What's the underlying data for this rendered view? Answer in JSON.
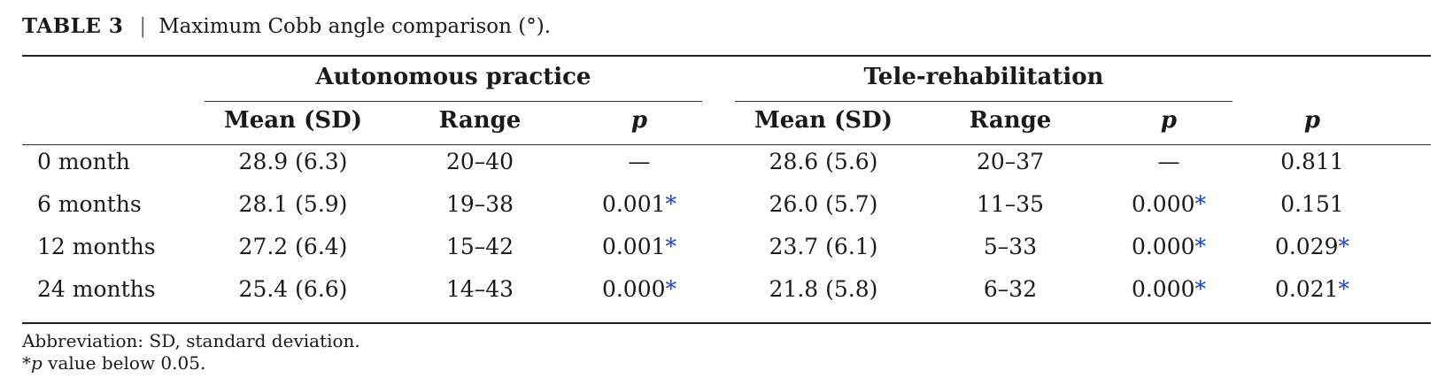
{
  "caption": {
    "label": "TABLE 3",
    "separator": "|",
    "title": "Maximum Cobb angle comparison (°)."
  },
  "groups": [
    {
      "label": "Autonomous practice"
    },
    {
      "label": "Tele-rehabilitation"
    }
  ],
  "columns": {
    "group1": [
      "Mean (SD)",
      "Range",
      "p"
    ],
    "group2": [
      "Mean (SD)",
      "Range",
      "p"
    ],
    "overall": "p"
  },
  "rows": [
    {
      "label": "0 month",
      "a_mean": "28.9 (6.3)",
      "a_range": "20–40",
      "a_p": "—",
      "a_star": "",
      "t_mean": "28.6 (5.6)",
      "t_range": "20–37",
      "t_p": "—",
      "t_star": "",
      "p": "0.811",
      "p_star": ""
    },
    {
      "label": "6 months",
      "a_mean": "28.1 (5.9)",
      "a_range": "19–38",
      "a_p": "0.001",
      "a_star": "*",
      "t_mean": "26.0 (5.7)",
      "t_range": "11–35",
      "t_p": "0.000",
      "t_star": "*",
      "p": "0.151",
      "p_star": ""
    },
    {
      "label": "12 months",
      "a_mean": "27.2 (6.4)",
      "a_range": "15–42",
      "a_p": "0.001",
      "a_star": "*",
      "t_mean": "23.7 (6.1)",
      "t_range": "5–33",
      "t_p": "0.000",
      "t_star": "*",
      "p": "0.029",
      "p_star": "*"
    },
    {
      "label": "24 months",
      "a_mean": "25.4 (6.6)",
      "a_range": "14–43",
      "a_p": "0.000",
      "a_star": "*",
      "t_mean": "21.8 (5.8)",
      "t_range": "6–32",
      "t_p": "0.000",
      "t_star": "*",
      "p": "0.021",
      "p_star": "*"
    }
  ],
  "footnotes": {
    "abbreviation": "Abbreviation: SD, standard deviation.",
    "star_mark": "*",
    "star_p": "p",
    "star_text": " value below 0.05."
  },
  "colors": {
    "asterisk": "#1a3fc7",
    "text": "#1a1a1a",
    "rules": "#222222"
  }
}
